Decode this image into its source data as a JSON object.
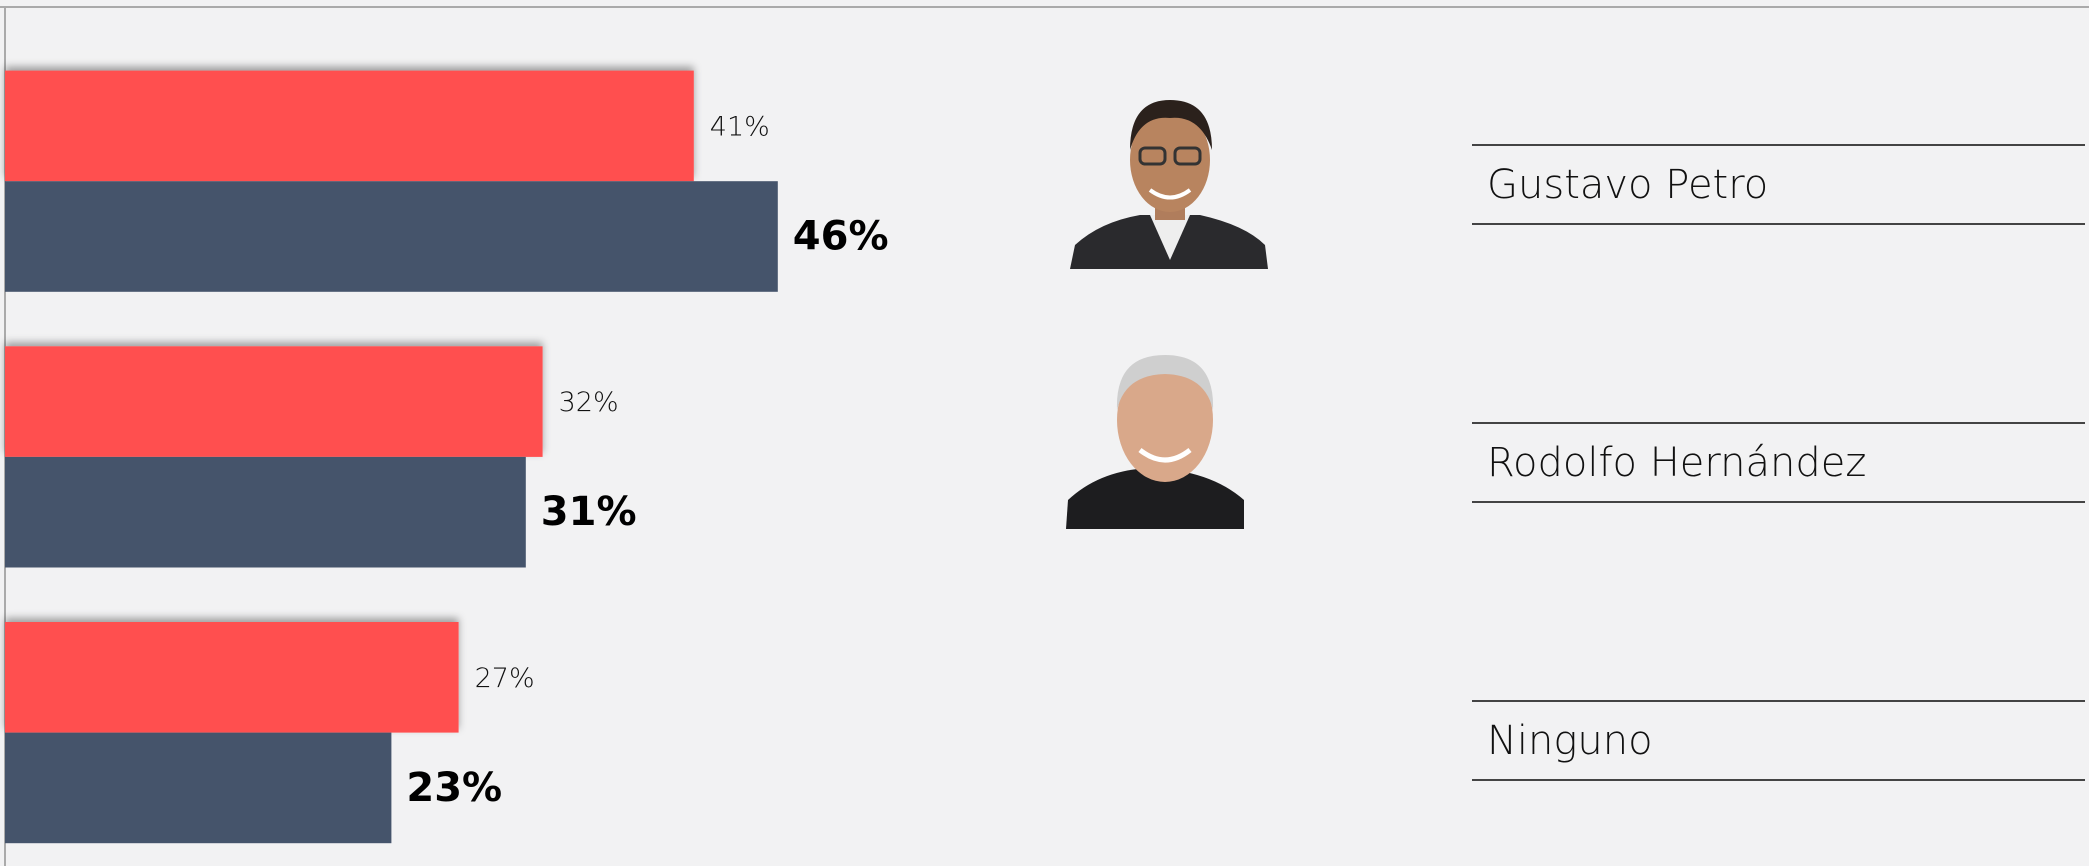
{
  "chart_data": {
    "type": "bar",
    "orientation": "horizontal",
    "categories": [
      "Gustavo Petro",
      "Rodolfo Hernández",
      "Ninguno"
    ],
    "series": [
      {
        "color": "#ff4f4f",
        "values": [
          41,
          32,
          27
        ],
        "value_labels": [
          "41%",
          "32%",
          "27%"
        ]
      },
      {
        "color": "#45546b",
        "values": [
          46,
          31,
          23
        ],
        "value_labels": [
          "46%",
          "31%",
          "23%"
        ]
      }
    ]
  }
}
